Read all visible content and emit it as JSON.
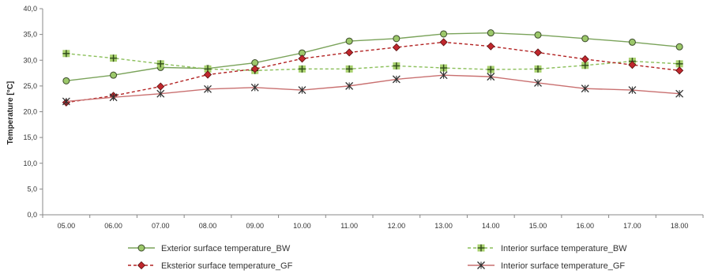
{
  "chart_data": {
    "type": "line",
    "title": "",
    "xlabel": "",
    "ylabel": "Temperature [°C]",
    "ylim": [
      0,
      40
    ],
    "yticks": [
      0,
      5,
      10,
      15,
      20,
      25,
      30,
      35,
      40
    ],
    "ytick_labels": [
      "0,0",
      "5,0",
      "10,0",
      "15,0",
      "20,0",
      "25,0",
      "30,0",
      "35,0",
      "40,0"
    ],
    "categories": [
      "05.00",
      "06.00",
      "07.00",
      "08.00",
      "09.00",
      "10.00",
      "11.00",
      "12.00",
      "13.00",
      "14.00",
      "15.00",
      "16.00",
      "17.00",
      "18.00"
    ],
    "grid": false,
    "legend_position": "bottom",
    "series": [
      {
        "name": "Exterior surface temperature_BW",
        "color": "#7aa35a",
        "marker_fill": "#9cc86a",
        "marker": "circle",
        "dash": "solid",
        "values": [
          26.0,
          27.1,
          28.6,
          28.4,
          29.5,
          31.4,
          33.7,
          34.2,
          35.1,
          35.3,
          34.9,
          34.2,
          33.5,
          32.6
        ]
      },
      {
        "name": "Interior surface temperature_BW",
        "color": "#8bbf5a",
        "marker_fill": "#a8d06e",
        "marker": "plus-square",
        "dash": "dashed",
        "values": [
          31.3,
          30.4,
          29.3,
          28.3,
          28.0,
          28.3,
          28.3,
          28.9,
          28.5,
          28.2,
          28.3,
          29.0,
          29.8,
          29.3
        ]
      },
      {
        "name": "Eksterior surface temperature_GF",
        "color": "#b22222",
        "marker_fill": "#c0272d",
        "marker": "diamond",
        "dash": "dashed",
        "values": [
          21.8,
          23.1,
          24.9,
          27.2,
          28.3,
          30.3,
          31.5,
          32.5,
          33.5,
          32.7,
          31.5,
          30.2,
          29.1,
          28.0
        ]
      },
      {
        "name": "Interior surface temperature_GF",
        "color": "#c97070",
        "marker_fill": "#333333",
        "marker": "asterisk",
        "dash": "solid",
        "values": [
          22.0,
          22.8,
          23.5,
          24.4,
          24.7,
          24.2,
          25.0,
          26.3,
          27.1,
          26.8,
          25.6,
          24.5,
          24.2,
          23.5
        ]
      }
    ]
  }
}
